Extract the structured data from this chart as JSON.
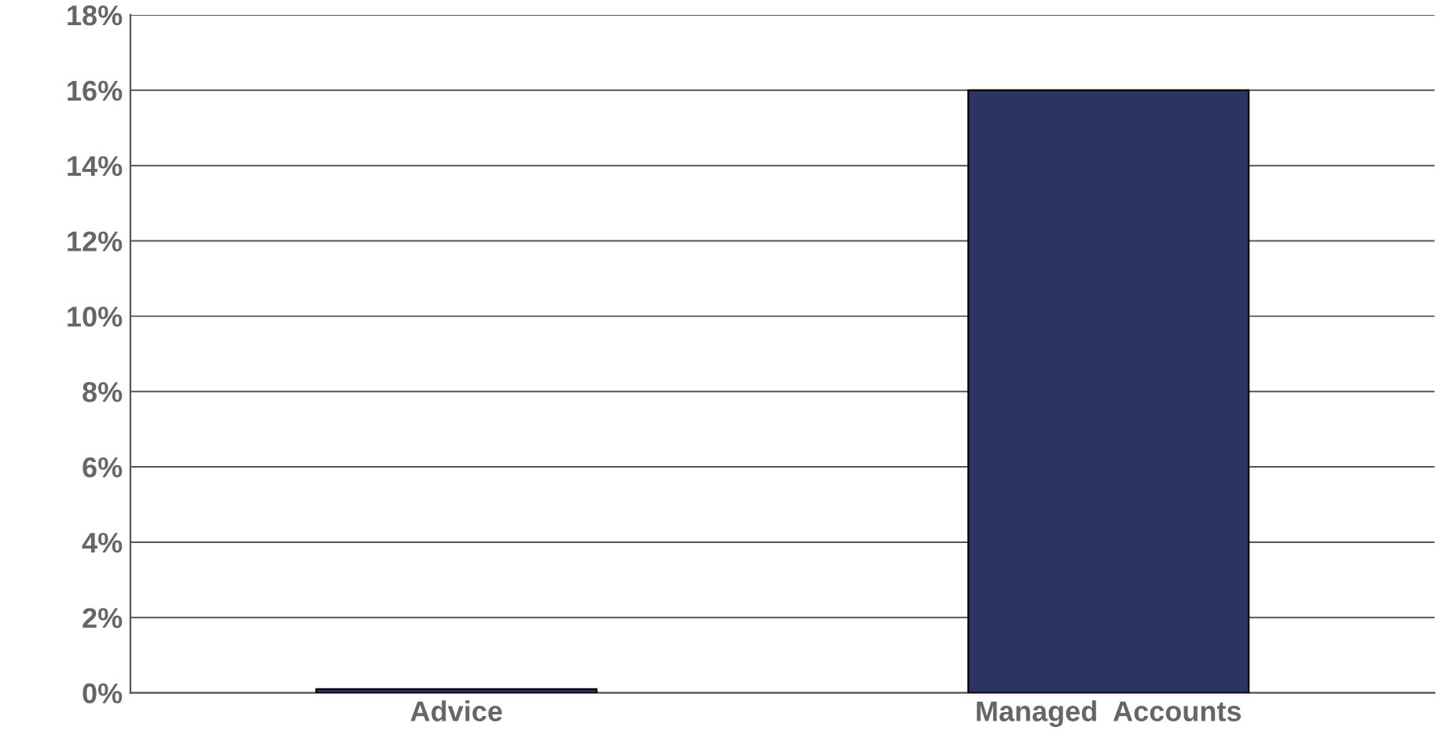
{
  "chart_data": {
    "type": "bar",
    "categories": [
      "Advice",
      "Managed  Accounts"
    ],
    "values": [
      0.1,
      16
    ],
    "color": "#2b3561",
    "ylim": [
      0,
      18
    ],
    "yticks": [
      {
        "value": 0,
        "label": "0%"
      },
      {
        "value": 2,
        "label": "2%"
      },
      {
        "value": 4,
        "label": "4%"
      },
      {
        "value": 6,
        "label": "6%"
      },
      {
        "value": 8,
        "label": "8%"
      },
      {
        "value": 10,
        "label": "10%"
      },
      {
        "value": 12,
        "label": "12%"
      },
      {
        "value": 14,
        "label": "14%"
      },
      {
        "value": 16,
        "label": "16%"
      },
      {
        "value": 18,
        "label": "18%"
      }
    ],
    "grid": "y"
  }
}
